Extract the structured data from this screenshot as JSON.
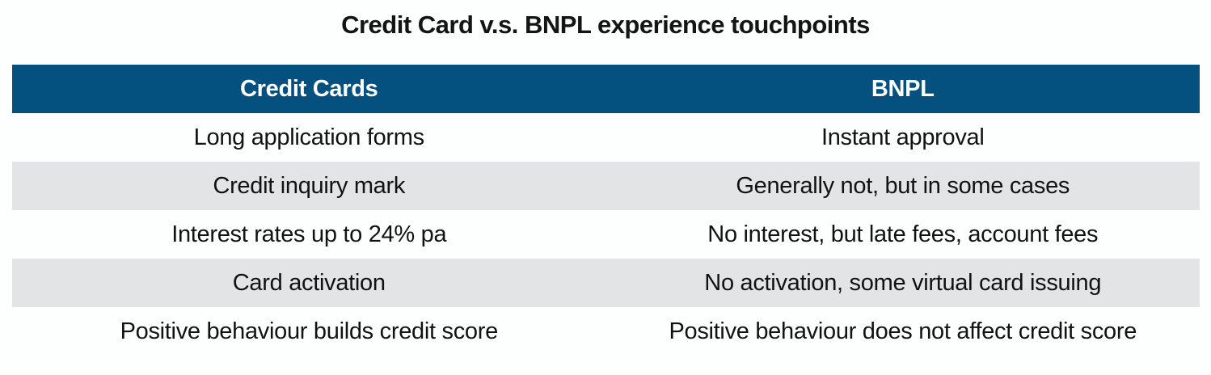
{
  "page": {
    "title": "Credit Card v.s. BNPL experience touchpoints"
  },
  "table": {
    "headers": [
      "Credit Cards",
      "BNPL"
    ],
    "rows": [
      [
        "Long application forms",
        "Instant approval"
      ],
      [
        "Credit inquiry mark",
        "Generally not, but in some cases"
      ],
      [
        "Interest rates up to 24% pa",
        "No interest, but late fees, account fees"
      ],
      [
        "Card activation",
        "No activation, some virtual card issuing"
      ],
      [
        "Positive behaviour builds credit score",
        "Positive behaviour does not affect credit score"
      ]
    ]
  },
  "colors": {
    "header_background": "#04507E",
    "header_text": "#FFFFFF",
    "alt_row_background": "#E2E4E6",
    "body_text": "#121212",
    "page_background": "#FDFEFE"
  },
  "chart_data": {
    "type": "table",
    "title": "Credit Card v.s. BNPL experience touchpoints",
    "columns": [
      "Credit Cards",
      "BNPL"
    ],
    "rows": [
      [
        "Long application forms",
        "Instant approval"
      ],
      [
        "Credit inquiry mark",
        "Generally not, but in some cases"
      ],
      [
        "Interest rates up to 24% pa",
        "No interest, but late fees, account fees"
      ],
      [
        "Card activation",
        "No activation, some virtual card issuing"
      ],
      [
        "Positive behaviour builds credit score",
        "Positive behaviour does not affect credit score"
      ]
    ],
    "layout": {
      "header_style": "dark-blue band, white bold centered text",
      "row_striping": "white / light-gray alternating starting with white",
      "cell_alignment": "center",
      "grid": false
    }
  }
}
